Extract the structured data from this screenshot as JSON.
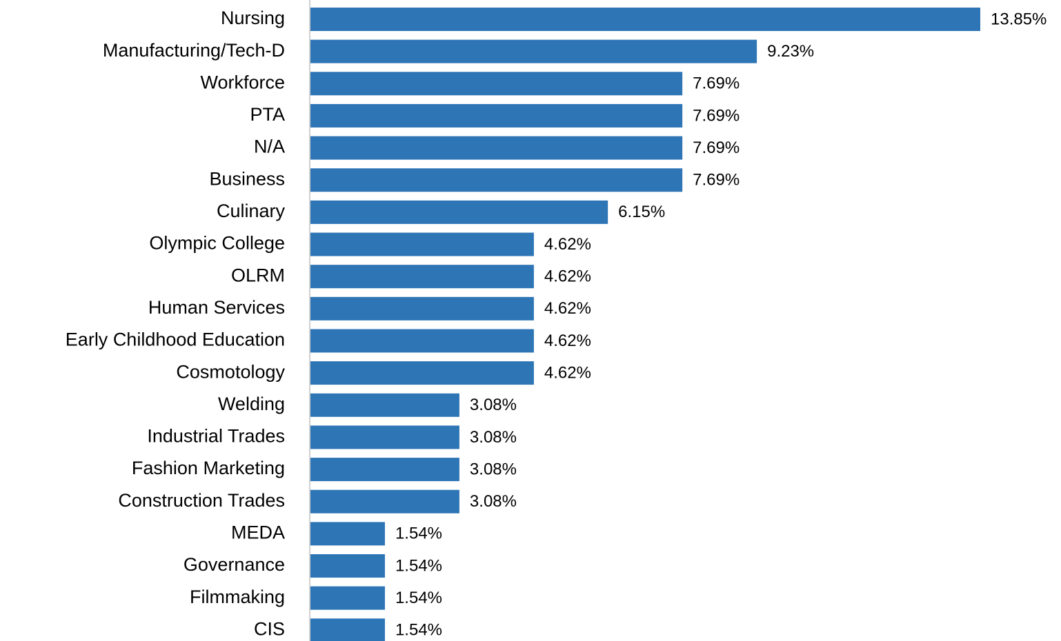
{
  "chart_data": {
    "type": "bar",
    "orientation": "horizontal",
    "categories": [
      "Nursing",
      "Manufacturing/Tech-D",
      "Workforce",
      "PTA",
      "N/A",
      "Business",
      "Culinary",
      "Olympic College",
      "OLRM",
      "Human Services",
      "Early Childhood Education",
      "Cosmotology",
      "Welding",
      "Industrial Trades",
      "Fashion Marketing",
      "Construction Trades",
      "MEDA",
      "Governance",
      "Filmmaking",
      "CIS"
    ],
    "values": [
      13.85,
      9.23,
      7.69,
      7.69,
      7.69,
      7.69,
      6.15,
      4.62,
      4.62,
      4.62,
      4.62,
      4.62,
      3.08,
      3.08,
      3.08,
      3.08,
      1.54,
      1.54,
      1.54,
      1.54
    ],
    "value_labels": [
      "13.85%",
      "9.23%",
      "7.69%",
      "7.69%",
      "7.69%",
      "7.69%",
      "6.15%",
      "4.62%",
      "4.62%",
      "4.62%",
      "4.62%",
      "4.62%",
      "3.08%",
      "3.08%",
      "3.08%",
      "3.08%",
      "1.54%",
      "1.54%",
      "1.54%",
      "1.54%"
    ],
    "color": "#2e75b6"
  }
}
